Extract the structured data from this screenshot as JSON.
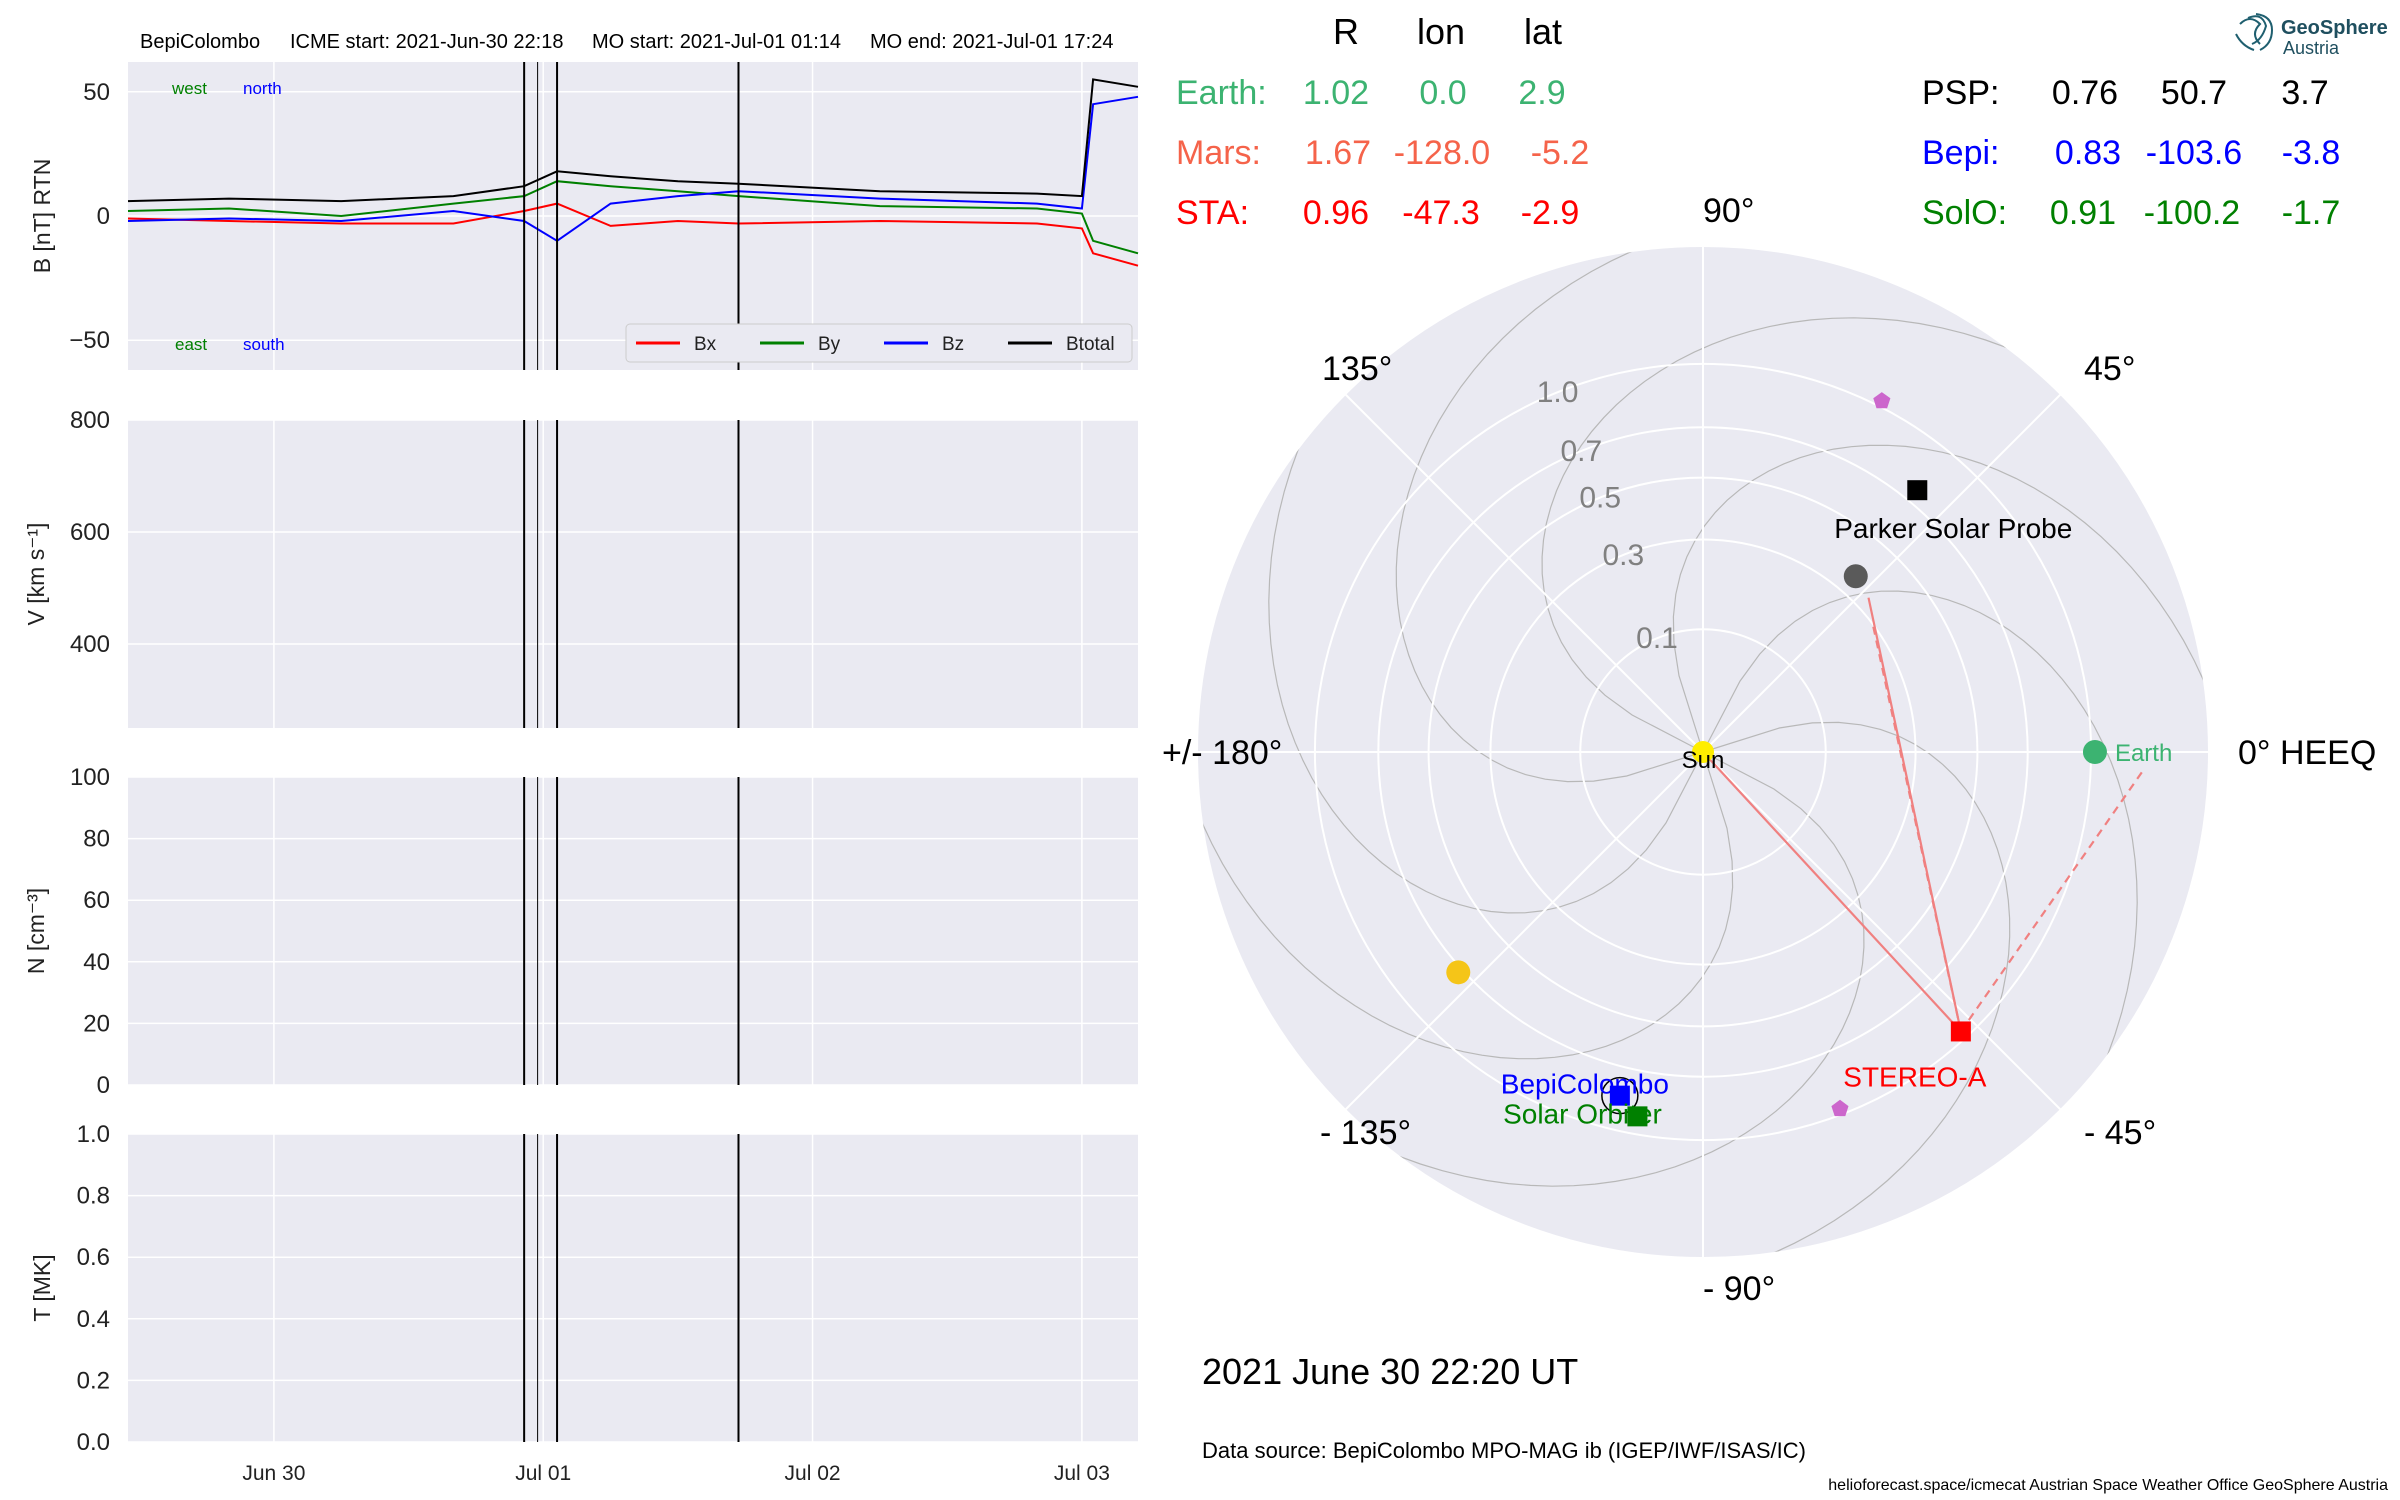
{
  "header": {
    "spacecraft": "BepiColombo",
    "icme_start": "ICME start: 2021-Jun-30 22:18",
    "mo_start": "MO start: 2021-Jul-01 01:14",
    "mo_end": "MO end: 2021-Jul-01 17:24"
  },
  "colors": {
    "panel_bg": "#eaeaf2",
    "grid": "#ffffff",
    "bx": "#ff0000",
    "by": "#008000",
    "bz": "#0000ff",
    "btotal": "#000000",
    "earth": "#3cb371",
    "mars": "#f5634a",
    "sta": "#ff0000",
    "psp": "#000000",
    "bepi": "#0000ff",
    "solo": "#008000",
    "sun": "#ffee00",
    "planet_marker": "#cc66cc",
    "cme_line": "#f08080"
  },
  "footer": {
    "date": "2021 June 30  22:20 UT",
    "source": "Data source: BepiColombo MPO-MAG ib (IGEP/IWF/ISAS/IC)",
    "credit": "helioforecast.space/icmecat   Austrian Space Weather Office   GeoSphere Austria"
  },
  "logo": {
    "line1": "GeoSphere",
    "line2": "Austria",
    "icon": "geosphere-logo-icon"
  },
  "positions_table": {
    "headers": [
      "R",
      "lon",
      "lat"
    ],
    "left": [
      {
        "name": "Earth:",
        "r": "1.02",
        "lon": "0.0",
        "lat": "2.9",
        "color": "#3cb371"
      },
      {
        "name": "Mars:",
        "r": "1.67",
        "lon": "-128.0",
        "lat": "-5.2",
        "color": "#f5634a"
      },
      {
        "name": "STA:",
        "r": "0.96",
        "lon": "-47.3",
        "lat": "-2.9",
        "color": "#ff0000"
      }
    ],
    "right": [
      {
        "name": "PSP:",
        "r": "0.76",
        "lon": "50.7",
        "lat": "3.7",
        "color": "#000000"
      },
      {
        "name": "Bepi:",
        "r": "0.83",
        "lon": "-103.6",
        "lat": "-3.8",
        "color": "#0000ff"
      },
      {
        "name": "SolO:",
        "r": "0.91",
        "lon": "-100.2",
        "lat": "-1.7",
        "color": "#008000"
      }
    ]
  },
  "chart_data": [
    {
      "type": "line",
      "panel": "magnetic_field",
      "ylabel": "B [nT] RTN",
      "ylim": [
        -62,
        62
      ],
      "yticks": [
        "50",
        "0",
        "−50"
      ],
      "xlim": [
        "2021-06-29T11:00",
        "2021-07-03T05:00"
      ],
      "xticks": [
        "Jun 30",
        "Jul 01",
        "Jul 02",
        "Jul 03"
      ],
      "annotations": {
        "top_left": [
          "west",
          "north"
        ],
        "bottom_left": [
          "east",
          "south"
        ]
      },
      "event_markers": [
        "2021-06-30T22:18",
        "2021-06-30T23:30",
        "2021-07-01T01:14",
        "2021-07-01T17:24"
      ],
      "legend": [
        "Bx",
        "By",
        "Bz",
        "Btotal"
      ],
      "legend_position": "lower-right",
      "series": [
        {
          "name": "Bx",
          "key": "bx",
          "x": [
            "2021-06-29T11:00",
            "2021-06-29T20:00",
            "2021-06-30T06:00",
            "2021-06-30T16:00",
            "2021-06-30T22:18",
            "2021-07-01T01:14",
            "2021-07-01T06:00",
            "2021-07-01T12:00",
            "2021-07-01T17:24",
            "2021-07-02T06:00",
            "2021-07-02T20:00",
            "2021-07-03T00:00",
            "2021-07-03T01:00",
            "2021-07-03T05:00"
          ],
          "y": [
            -1,
            -2,
            -3,
            -3,
            2,
            5,
            -4,
            -2,
            -3,
            -2,
            -3,
            -5,
            -15,
            -20
          ]
        },
        {
          "name": "By",
          "key": "by",
          "x": [
            "2021-06-29T11:00",
            "2021-06-29T20:00",
            "2021-06-30T06:00",
            "2021-06-30T16:00",
            "2021-06-30T22:18",
            "2021-07-01T01:14",
            "2021-07-01T06:00",
            "2021-07-01T12:00",
            "2021-07-01T17:24",
            "2021-07-02T06:00",
            "2021-07-02T20:00",
            "2021-07-03T00:00",
            "2021-07-03T01:00",
            "2021-07-03T05:00"
          ],
          "y": [
            2,
            3,
            0,
            5,
            8,
            14,
            12,
            10,
            8,
            4,
            3,
            1,
            -10,
            -15
          ]
        },
        {
          "name": "Bz",
          "key": "bz",
          "x": [
            "2021-06-29T11:00",
            "2021-06-29T20:00",
            "2021-06-30T06:00",
            "2021-06-30T16:00",
            "2021-06-30T22:18",
            "2021-07-01T01:14",
            "2021-07-01T06:00",
            "2021-07-01T12:00",
            "2021-07-01T17:24",
            "2021-07-02T06:00",
            "2021-07-02T20:00",
            "2021-07-03T00:00",
            "2021-07-03T01:00",
            "2021-07-03T05:00"
          ],
          "y": [
            -2,
            -1,
            -2,
            2,
            -2,
            -10,
            5,
            8,
            10,
            7,
            5,
            3,
            45,
            48
          ]
        },
        {
          "name": "Btotal",
          "key": "btotal",
          "x": [
            "2021-06-29T11:00",
            "2021-06-29T20:00",
            "2021-06-30T06:00",
            "2021-06-30T16:00",
            "2021-06-30T22:18",
            "2021-07-01T01:14",
            "2021-07-01T06:00",
            "2021-07-01T12:00",
            "2021-07-01T17:24",
            "2021-07-02T06:00",
            "2021-07-02T20:00",
            "2021-07-03T00:00",
            "2021-07-03T01:00",
            "2021-07-03T05:00"
          ],
          "y": [
            6,
            7,
            6,
            8,
            12,
            18,
            16,
            14,
            13,
            10,
            9,
            8,
            55,
            52
          ]
        }
      ]
    },
    {
      "type": "line",
      "panel": "velocity",
      "ylabel": "V [km s⁻¹]",
      "ylim": [
        250,
        800
      ],
      "yticks": [
        "800",
        "600",
        "400"
      ],
      "xlim": [
        "2021-06-29T11:00",
        "2021-07-03T05:00"
      ],
      "event_markers": [
        "2021-06-30T22:18",
        "2021-06-30T23:30",
        "2021-07-01T01:14",
        "2021-07-01T17:24"
      ],
      "series": []
    },
    {
      "type": "line",
      "panel": "density",
      "ylabel": "N [cm⁻³]",
      "ylim": [
        0,
        100
      ],
      "yticks": [
        "100",
        "80",
        "60",
        "40",
        "20",
        "0"
      ],
      "xlim": [
        "2021-06-29T11:00",
        "2021-07-03T05:00"
      ],
      "event_markers": [
        "2021-06-30T22:18",
        "2021-06-30T23:30",
        "2021-07-01T01:14",
        "2021-07-01T17:24"
      ],
      "series": []
    },
    {
      "type": "line",
      "panel": "temperature",
      "ylabel": "T [MK]",
      "ylim": [
        0,
        1
      ],
      "yticks": [
        "1.0",
        "0.8",
        "0.6",
        "0.4",
        "0.2",
        "0.0"
      ],
      "xlim": [
        "2021-06-29T11:00",
        "2021-07-03T05:00"
      ],
      "xticks": [
        "Jun 30",
        "Jul 01",
        "Jul 02",
        "Jul 03"
      ],
      "event_markers": [
        "2021-06-30T22:18",
        "2021-06-30T23:30",
        "2021-07-01T01:14",
        "2021-07-01T17:24"
      ],
      "series": []
    },
    {
      "type": "scatter",
      "panel": "polar_heeq",
      "r_scale": "sqrt",
      "rmax": 1.7,
      "r_ticks": [
        "0.1",
        "0.3",
        "0.5",
        "0.7",
        "1.0"
      ],
      "angle_labels": [
        "0° HEEQ",
        "45°",
        "90°",
        "135°",
        "+/- 180°",
        "- 135°",
        "- 90°",
        "- 45°"
      ],
      "bodies": [
        {
          "name": "Sun",
          "r": 0.0,
          "lon": 0,
          "shape": "circle",
          "color": "#ffee00",
          "label": "Sun"
        },
        {
          "name": "Earth",
          "r": 1.02,
          "lon": 0.0,
          "shape": "circle",
          "color": "#3cb371",
          "label": "Earth"
        },
        {
          "name": "Parker Solar Probe",
          "r": 0.76,
          "lon": 50.7,
          "shape": "square",
          "color": "#000000",
          "label": "Parker Solar Probe"
        },
        {
          "name": "BepiColombo",
          "r": 0.83,
          "lon": -103.6,
          "shape": "square",
          "color": "#0000ff",
          "label": "BepiColombo"
        },
        {
          "name": "Solar Orbiter",
          "r": 0.91,
          "lon": -100.2,
          "shape": "square",
          "color": "#008000",
          "label": "Solar Orbiter"
        },
        {
          "name": "STEREO-A",
          "r": 0.96,
          "lon": -47.3,
          "shape": "square",
          "color": "#ff0000",
          "label": "STEREO-A"
        },
        {
          "name": "Mercury",
          "r": 0.36,
          "lon": 49,
          "shape": "circle",
          "color": "#5a5a5a"
        },
        {
          "name": "Venus",
          "r": 0.72,
          "lon": -138,
          "shape": "circle",
          "color": "#f5c518"
        },
        {
          "name": "Mars-direction marker",
          "r": 1.03,
          "lon": 63,
          "shape": "pentagon",
          "color": "#cc66cc"
        },
        {
          "name": "pentagon marker south",
          "r": 0.97,
          "lon": -69,
          "shape": "pentagon",
          "color": "#cc66cc"
        }
      ],
      "lines": [
        {
          "from": "STEREO-A",
          "to": "Sun",
          "style": "solid"
        },
        {
          "from": "STEREO-A",
          "to_point": {
            "r": 0.34,
            "lon": 43
          },
          "style": "solid"
        },
        {
          "from": "STEREO-A",
          "to_point": {
            "r": 0.3,
            "lon": 37
          },
          "style": "dashed"
        },
        {
          "from": "STEREO-A",
          "to_point": {
            "r": 1.3,
            "lon": -2
          },
          "style": "dashed"
        }
      ]
    }
  ]
}
